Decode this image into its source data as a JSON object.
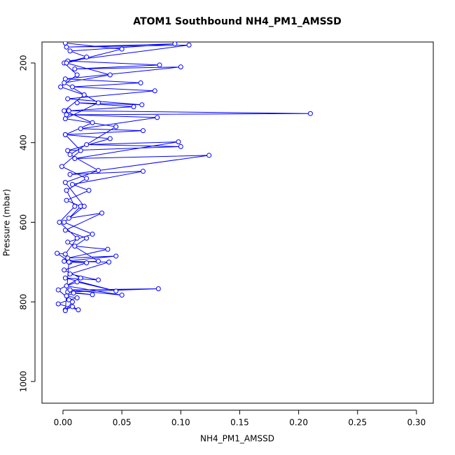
{
  "chart_data": {
    "type": "line",
    "title": "ATOM1 Southbound NH4_PM1_AMSSD",
    "x_label": "NH4_PM1_AMSSD",
    "y_label": "Pressure (mbar)",
    "x": [
      0.002,
      0.008,
      0.013,
      -0.004,
      0.005,
      0.012,
      0.003,
      0.009,
      0.025,
      0.004,
      0.081,
      0.006,
      0.05,
      0.003,
      0.012,
      0.045,
      0.002,
      0.03,
      0.006,
      0.039,
      0.001,
      0.045,
      0.004,
      0.038,
      0.01,
      0.02,
      0.002,
      0.033,
      0.005,
      0.015,
      0.003,
      0.022,
      0.008,
      0.068,
      0.006,
      0.124,
      0.01,
      0.098,
      0.02,
      0.1,
      0.004,
      0.04,
      0.002,
      0.068,
      0.015,
      0.08,
      0.003,
      0.21,
      0.005,
      0.06,
      0.012,
      0.067,
      0.004,
      0.078,
      0.008,
      0.066,
      0.002,
      0.1,
      0.01,
      0.082,
      0.004,
      0.107,
      0.003,
      0.095,
      0.006,
      0.02,
      0.001,
      0.012,
      -0.002,
      0.018,
      0.001,
      0.025,
      0.002,
      0.015,
      -0.001,
      0.02,
      0.003,
      0.01,
      -0.003,
      0.012,
      0.002,
      -0.005,
      0.006,
      0.02,
      0.001,
      0.015,
      -0.004,
      0.008,
      0.002,
      0.005,
      0.03,
      0.004,
      0.025,
      0.001,
      0.018,
      0.002,
      0.03,
      0.006,
      0.045,
      0.002,
      0.03,
      0.001,
      0.04,
      0.003,
      0.05,
      0.002
    ],
    "series": [
      {
        "color": "#0000ff",
        "values": [
          820,
          812,
          820,
          805,
          795,
          790,
          785,
          778,
          782,
          775,
          767,
          770,
          783,
          760,
          750,
          773,
          740,
          745,
          730,
          700,
          698,
          685,
          690,
          668,
          660,
          640,
          620,
          577,
          590,
          560,
          545,
          520,
          505,
          472,
          480,
          432,
          440,
          398,
          405,
          410,
          420,
          390,
          380,
          370,
          365,
          337,
          330,
          327,
          320,
          310,
          300,
          305,
          290,
          270,
          260,
          250,
          240,
          210,
          215,
          205,
          195,
          155,
          160,
          152,
          170,
          185,
          200,
          230,
          260,
          280,
          320,
          350,
          380,
          420,
          460,
          490,
          520,
          560,
          600,
          640,
          680,
          678,
          700,
          702,
          720,
          740,
          770,
          800,
          822,
          700,
          698,
          650,
          630,
          600,
          560,
          500,
          470,
          430,
          360,
          340,
          300,
          250,
          230,
          200,
          165,
          150
        ]
      }
    ],
    "xlim": [
      -0.0178,
      0.3143
    ],
    "ylim": [
      1054.5,
      147.3
    ],
    "xticks": [
      {
        "value": 0,
        "label": "0.00"
      },
      {
        "value": 0.05,
        "label": "0.05"
      },
      {
        "value": 0.1,
        "label": "0.10"
      },
      {
        "value": 0.15,
        "label": "0.15"
      },
      {
        "value": 0.2,
        "label": "0.20"
      },
      {
        "value": 0.25,
        "label": "0.25"
      },
      {
        "value": 0.3,
        "label": "0.30"
      }
    ],
    "yticks": [
      200,
      400,
      600,
      800,
      1000
    ]
  }
}
